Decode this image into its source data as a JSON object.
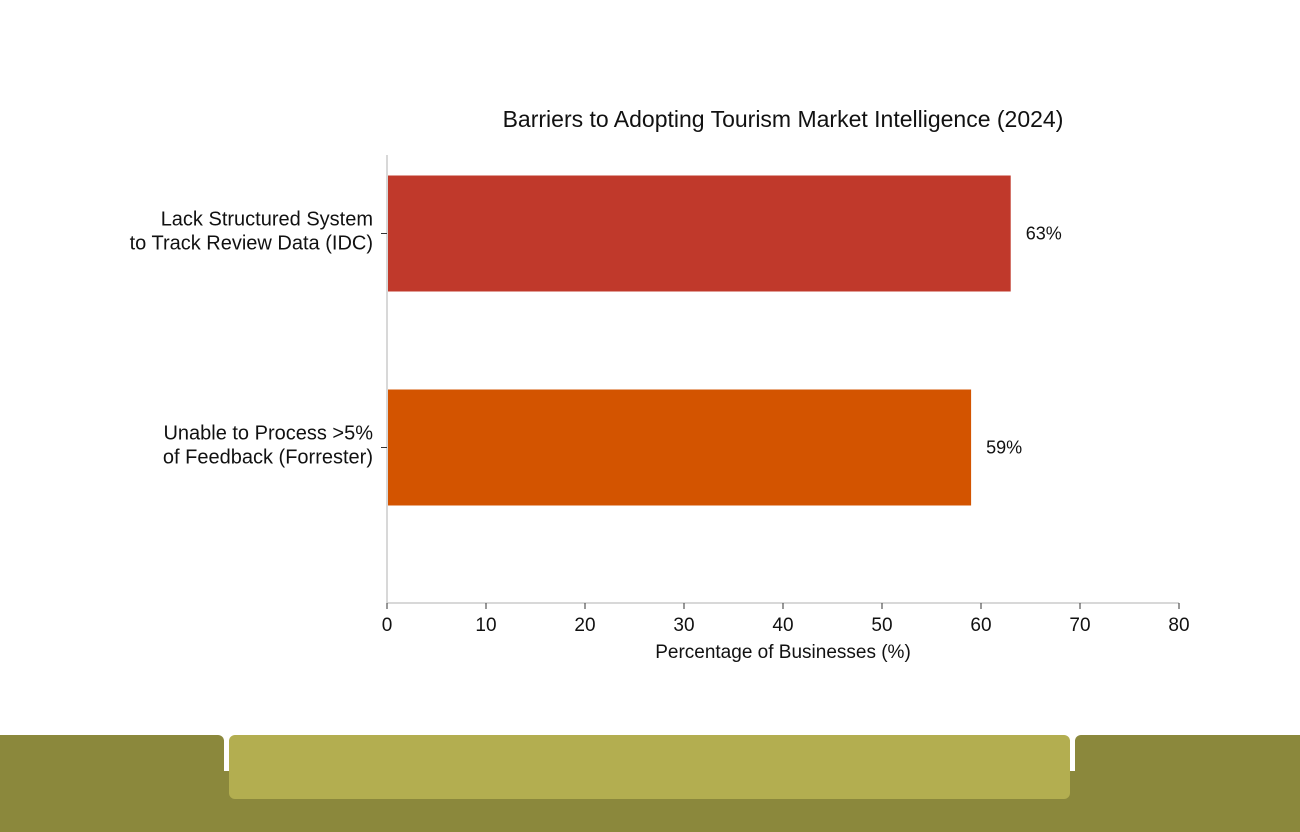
{
  "chart_data": {
    "type": "bar",
    "orientation": "horizontal",
    "title": "Barriers to Adopting Tourism Market Intelligence (2024)",
    "xlabel": "Percentage of Businesses (%)",
    "ylabel": "",
    "xlim": [
      0,
      80
    ],
    "xticks": [
      "0",
      "10",
      "20",
      "30",
      "40",
      "50",
      "60",
      "70",
      "80"
    ],
    "categories": [
      [
        "Lack Structured System",
        "to Track Review Data (IDC)"
      ],
      [
        "Unable to Process >5%",
        "of Feedback (Forrester)"
      ]
    ],
    "values": [
      63,
      59
    ],
    "data_labels": [
      "63%",
      "59%"
    ],
    "colors": [
      "#c0392b",
      "#d35400"
    ],
    "grid": false,
    "legend": "none"
  }
}
